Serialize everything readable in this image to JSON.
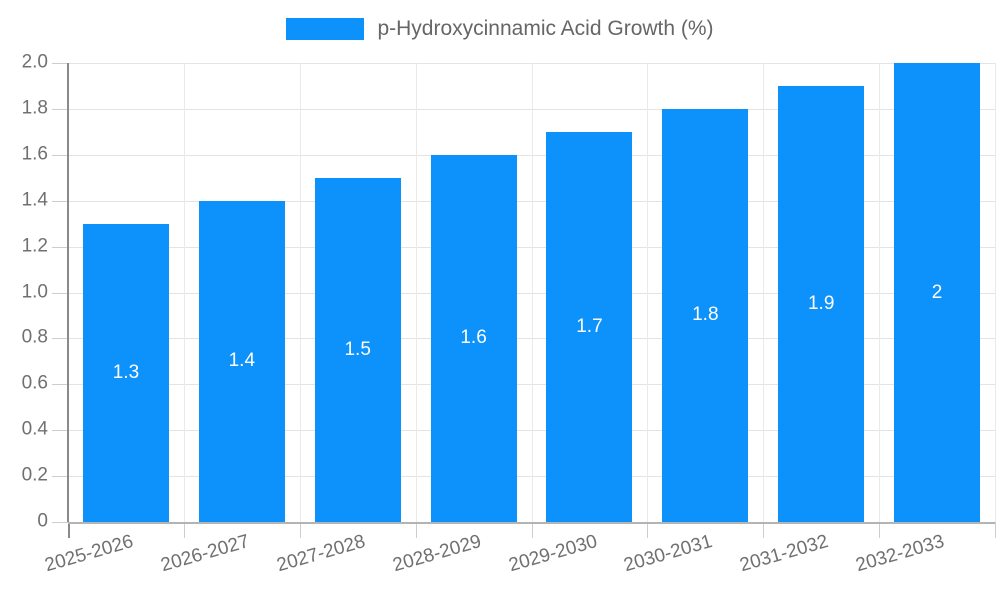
{
  "chart_data": {
    "type": "bar",
    "title": "p-Hydroxycinnamic Acid Growth (%)",
    "legend_label": "p-Hydroxycinnamic Acid Growth (%)",
    "legend_position": "top",
    "categories": [
      "2025-2026",
      "2026-2027",
      "2027-2028",
      "2028-2029",
      "2029-2030",
      "2030-2031",
      "2031-2032",
      "2032-2033"
    ],
    "values": [
      1.3,
      1.4,
      1.5,
      1.6,
      1.7,
      1.8,
      1.9,
      2
    ],
    "bar_labels": [
      "1.3",
      "1.4",
      "1.5",
      "1.6",
      "1.7",
      "1.8",
      "1.9",
      "2"
    ],
    "xlabel": "",
    "ylabel": "",
    "ylim": [
      0,
      2
    ],
    "ytick_step": 0.2,
    "ytick_labels": [
      "0",
      "0.2",
      "0.4",
      "0.6",
      "0.8",
      "1.0",
      "1.2",
      "1.4",
      "1.6",
      "1.8",
      "2.0"
    ],
    "grid": "both",
    "colors": {
      "bar": "#0D91FA",
      "grid_h": "#E4E4E4",
      "grid_v": "#E9E9E9",
      "axis_y": "#8A8A8A",
      "axis_x": "#B4B4B4",
      "tick": "#CDCDCD",
      "tick_label": "#707070",
      "legend_text": "#666666",
      "bar_label": "#FFFFFF",
      "background": "#FFFFFF"
    }
  }
}
